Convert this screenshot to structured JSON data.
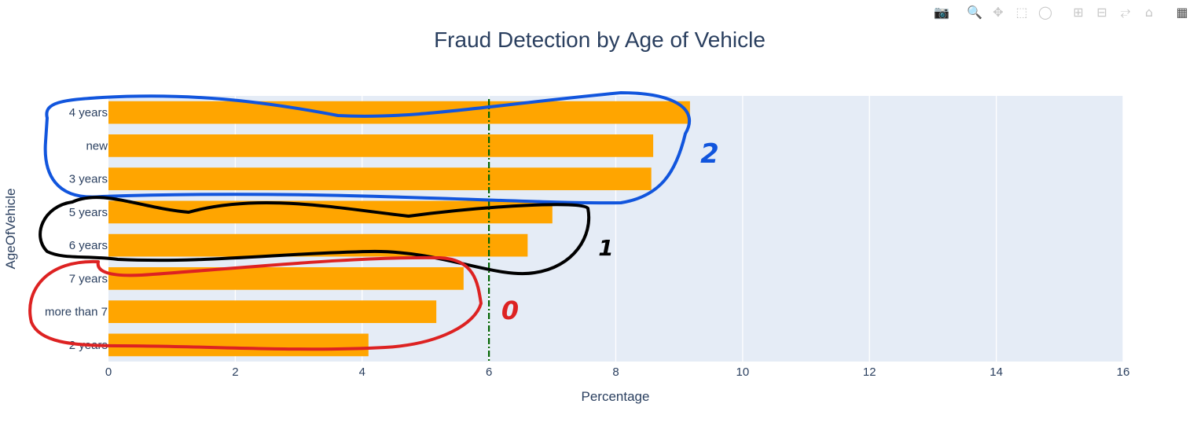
{
  "chart_data": {
    "type": "bar",
    "orientation": "horizontal",
    "title": "Fraud Detection by Age of Vehicle",
    "xlabel": "Percentage",
    "ylabel": "AgeOfVehicle",
    "categories": [
      "4 years",
      "new",
      "3 years",
      "5 years",
      "6 years",
      "7 years",
      "more than 7",
      "2 years"
    ],
    "values": [
      9.17,
      8.59,
      8.56,
      7.0,
      6.61,
      5.6,
      5.17,
      4.1
    ],
    "xlim": [
      0,
      16
    ],
    "xticks": [
      0,
      2,
      4,
      6,
      8,
      10,
      12,
      14,
      16
    ],
    "grid": true,
    "bar_color": "#FFA500",
    "plot_bg": "#E5ECF6",
    "reference_line": {
      "x": 6,
      "style": "dash-dot",
      "color": "#006400"
    },
    "annotations": [
      {
        "text": "2",
        "group": [
          "4 years",
          "new",
          "3 years"
        ],
        "color": "#1155DD"
      },
      {
        "text": "1",
        "group": [
          "5 years",
          "6 years"
        ],
        "color": "#000000"
      },
      {
        "text": "0",
        "group": [
          "7 years",
          "more than 7",
          "2 years"
        ],
        "color": "#DD2222"
      }
    ]
  },
  "modebar": {
    "icons": [
      "camera-icon",
      "zoom-icon",
      "pan-icon",
      "box-select-icon",
      "lasso-icon",
      "zoom-in-icon",
      "zoom-out-icon",
      "autoscale-icon",
      "reset-axes-icon",
      "plotly-logo-icon"
    ]
  }
}
